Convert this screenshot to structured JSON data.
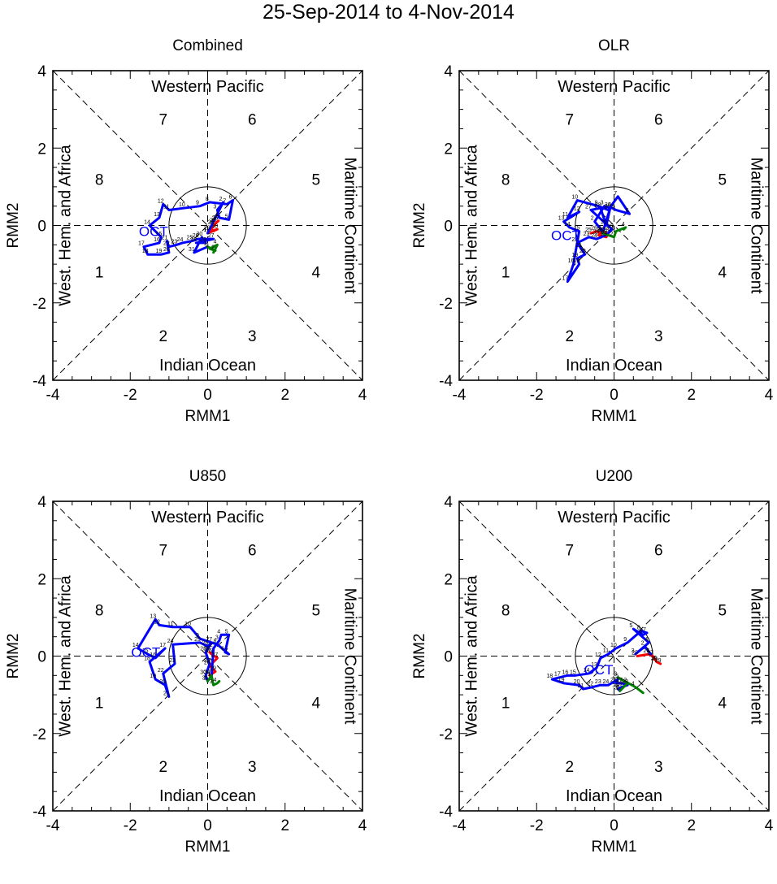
{
  "title": "25-Sep-2014 to 4-Nov-2014",
  "colors": {
    "september": "#ff0000",
    "october": "#0000ff",
    "november": "#008000",
    "axis": "#000000"
  },
  "chart_data": [
    {
      "type": "line",
      "title": "Combined",
      "xlabel": "RMM1",
      "ylabel": "RMM2",
      "xlim": [
        -4,
        4
      ],
      "ylim": [
        -4,
        4
      ],
      "ticks": [
        -4,
        -2,
        0,
        2,
        4
      ],
      "regions": {
        "top": "Western Pacific",
        "bottom": "Indian Ocean",
        "left": "West. Hem. and Africa",
        "right": "Maritime Continent"
      },
      "phases": [
        "1",
        "2",
        "3",
        "4",
        "5",
        "6",
        "7",
        "8"
      ],
      "month_label": "OCT",
      "month_label_at": [
        -1.4,
        -0.15
      ],
      "series": [
        {
          "name": "Sep",
          "color": "#ff0000",
          "points": [
            [
              0.15,
              0.0
            ],
            [
              0.25,
              0.1
            ],
            [
              0.28,
              0.12
            ],
            [
              0.2,
              0.05
            ],
            [
              0.05,
              -0.15
            ],
            [
              0.25,
              -0.1
            ],
            [
              0.0,
              -0.2
            ]
          ],
          "labels": [
            "25",
            "26",
            "27",
            "28",
            "29",
            "30",
            "1"
          ]
        },
        {
          "name": "Oct",
          "color": "#0000ff",
          "points": [
            [
              0.0,
              -0.2
            ],
            [
              0.4,
              0.6
            ],
            [
              0.25,
              0.4
            ],
            [
              0.3,
              0.2
            ],
            [
              0.55,
              0.15
            ],
            [
              0.65,
              0.65
            ],
            [
              0.5,
              0.55
            ],
            [
              0.05,
              0.6
            ],
            [
              -0.2,
              0.5
            ],
            [
              -0.6,
              0.45
            ],
            [
              -1.0,
              0.4
            ],
            [
              -1.15,
              0.55
            ],
            [
              -1.25,
              0.2
            ],
            [
              -1.5,
              0.0
            ],
            [
              -1.2,
              -0.3
            ],
            [
              -1.25,
              -0.45
            ],
            [
              -1.65,
              -0.55
            ],
            [
              -1.55,
              -0.75
            ],
            [
              -1.2,
              -0.75
            ],
            [
              -1.0,
              -0.7
            ],
            [
              -1.05,
              -0.4
            ],
            [
              -1.0,
              -0.55
            ],
            [
              -0.8,
              -0.5
            ],
            [
              -0.65,
              -0.45
            ],
            [
              -0.4,
              -0.4
            ],
            [
              -0.25,
              -0.35
            ],
            [
              0.15,
              -0.35
            ],
            [
              -0.3,
              -0.45
            ],
            [
              -0.05,
              -0.45
            ],
            [
              -0.15,
              -0.3
            ],
            [
              -0.35,
              -0.7
            ],
            [
              0.0,
              -0.55
            ]
          ],
          "labels": [
            "1",
            "2",
            "3",
            "4",
            "5",
            "6",
            "7",
            "8",
            "9",
            "10",
            "11",
            "12",
            "13",
            "14",
            "15",
            "16",
            "17",
            "18",
            "19",
            "20",
            "21",
            "22",
            "23",
            "24",
            "25",
            "26",
            "27",
            "28",
            "29",
            "30",
            "31",
            ""
          ]
        },
        {
          "name": "Nov",
          "color": "#008000",
          "points": [
            [
              0.0,
              -0.55
            ],
            [
              0.2,
              -0.65
            ],
            [
              0.05,
              -0.6
            ],
            [
              0.25,
              -0.5
            ],
            [
              0.15,
              -0.7
            ]
          ],
          "labels": [
            "1",
            "2",
            "3",
            "4",
            ""
          ]
        }
      ]
    },
    {
      "type": "line",
      "title": "OLR",
      "xlabel": "RMM1",
      "ylabel": "RMM2",
      "xlim": [
        -4,
        4
      ],
      "ylim": [
        -4,
        4
      ],
      "ticks": [
        -4,
        -2,
        0,
        2,
        4
      ],
      "regions": {
        "top": "Western Pacific",
        "bottom": "Indian Ocean",
        "left": "West. Hem. and Africa",
        "right": "Maritime Continent"
      },
      "phases": [
        "1",
        "2",
        "3",
        "4",
        "5",
        "6",
        "7",
        "8"
      ],
      "month_label": "OCT",
      "month_label_at": [
        -1.25,
        -0.25
      ],
      "series": [
        {
          "name": "Sep",
          "color": "#ff0000",
          "points": [
            [
              -0.6,
              -0.2
            ],
            [
              -0.45,
              -0.15
            ],
            [
              -0.3,
              -0.2
            ],
            [
              -0.15,
              -0.2
            ],
            [
              -0.2,
              -0.3
            ],
            [
              -0.4,
              -0.25
            ],
            [
              -0.3,
              -0.15
            ]
          ],
          "labels": [
            "25",
            "26",
            "27",
            "28",
            "29",
            "30",
            "1"
          ]
        },
        {
          "name": "Oct",
          "color": "#0000ff",
          "points": [
            [
              -0.3,
              -0.15
            ],
            [
              -0.5,
              0.1
            ],
            [
              -0.25,
              0.5
            ],
            [
              -0.05,
              0.45
            ],
            [
              0.05,
              0.4
            ],
            [
              0.4,
              0.3
            ],
            [
              0.1,
              0.75
            ],
            [
              -0.15,
              0.4
            ],
            [
              -0.4,
              0.5
            ],
            [
              -0.95,
              0.65
            ],
            [
              -1.2,
              0.2
            ],
            [
              -0.9,
              0.35
            ],
            [
              -1.3,
              0.1
            ],
            [
              -1.15,
              -0.05
            ],
            [
              -0.9,
              -0.15
            ],
            [
              -1.05,
              -1.0
            ],
            [
              -1.2,
              -1.45
            ],
            [
              -0.9,
              -1.0
            ],
            [
              -0.95,
              -0.85
            ],
            [
              -0.75,
              -0.75
            ],
            [
              -0.85,
              -0.6
            ],
            [
              -0.95,
              -0.45
            ],
            [
              -0.65,
              -0.3
            ],
            [
              -0.45,
              -0.35
            ],
            [
              -0.2,
              -0.25
            ],
            [
              -0.05,
              -0.1
            ],
            [
              -0.6,
              0.4
            ],
            [
              -0.35,
              0.45
            ],
            [
              -0.2,
              0.0
            ],
            [
              -0.1,
              0.45
            ],
            [
              -0.3,
              -0.2
            ]
          ],
          "labels": [
            "1",
            "2",
            "3",
            "4",
            "5",
            "6",
            "7",
            "8",
            "9",
            "10",
            "11",
            "12",
            "13",
            "14",
            "15",
            "16",
            "17",
            "18",
            "19",
            "20",
            "21",
            "22",
            "23",
            "24",
            "25",
            "26",
            "27",
            "28",
            "29",
            "30",
            "31"
          ]
        },
        {
          "name": "Nov",
          "color": "#008000",
          "points": [
            [
              -0.3,
              -0.2
            ],
            [
              0.0,
              -0.3
            ],
            [
              0.05,
              -0.15
            ],
            [
              0.3,
              -0.05
            ],
            [
              0.25,
              -0.1
            ]
          ],
          "labels": [
            "1",
            "2",
            "3",
            "4",
            ""
          ]
        }
      ]
    },
    {
      "type": "line",
      "title": "U850",
      "xlabel": "RMM1",
      "ylabel": "RMM2",
      "xlim": [
        -4,
        4
      ],
      "ylim": [
        -4,
        4
      ],
      "ticks": [
        -4,
        -2,
        0,
        2,
        4
      ],
      "regions": {
        "top": "Western Pacific",
        "bottom": "Indian Ocean",
        "left": "West. Hem. and Africa",
        "right": "Maritime Continent"
      },
      "phases": [
        "1",
        "2",
        "3",
        "4",
        "5",
        "6",
        "7",
        "8"
      ],
      "month_label": "OCT",
      "month_label_at": [
        -1.6,
        0.1
      ],
      "series": [
        {
          "name": "Sep",
          "color": "#ff0000",
          "points": [
            [
              0.05,
              0.1
            ],
            [
              0.1,
              0.05
            ],
            [
              0.25,
              -0.05
            ],
            [
              0.05,
              -0.25
            ],
            [
              0.2,
              -0.4
            ],
            [
              0.05,
              -0.5
            ],
            [
              0.1,
              -0.55
            ]
          ],
          "labels": [
            "25",
            "26",
            "27",
            "28",
            "29",
            "30",
            "1"
          ]
        },
        {
          "name": "Oct",
          "color": "#0000ff",
          "points": [
            [
              0.1,
              -0.55
            ],
            [
              0.15,
              0.2
            ],
            [
              0.3,
              0.4
            ],
            [
              0.35,
              0.55
            ],
            [
              0.55,
              0.55
            ],
            [
              0.45,
              0.1
            ],
            [
              0.55,
              0.05
            ],
            [
              0.25,
              0.3
            ],
            [
              -0.2,
              0.45
            ],
            [
              -0.45,
              0.75
            ],
            [
              -0.9,
              0.75
            ],
            [
              -1.25,
              0.8
            ],
            [
              -1.35,
              0.95
            ],
            [
              -1.8,
              0.2
            ],
            [
              -1.55,
              0.05
            ],
            [
              -1.35,
              -0.05
            ],
            [
              -1.1,
              0.2
            ],
            [
              -1.5,
              -0.15
            ],
            [
              -1.35,
              -0.6
            ],
            [
              -1.1,
              -0.75
            ],
            [
              -1.0,
              -1.05
            ],
            [
              -1.15,
              -0.45
            ],
            [
              -0.85,
              -0.2
            ],
            [
              -0.9,
              0.3
            ],
            [
              -0.2,
              0.35
            ],
            [
              0.0,
              0.25
            ],
            [
              0.1,
              0.35
            ],
            [
              -0.05,
              0.1
            ],
            [
              0.05,
              -0.2
            ],
            [
              -0.05,
              -0.5
            ],
            [
              0.0,
              -0.65
            ]
          ],
          "labels": [
            "1",
            "2",
            "3",
            "4",
            "5",
            "6",
            "7",
            "8",
            "9",
            "10",
            "11",
            "12",
            "13",
            "14",
            "15",
            "16",
            "17",
            "18",
            "19",
            "20",
            "21",
            "22",
            "23",
            "24",
            "25",
            "26",
            "27",
            "28",
            "29",
            "30",
            "31"
          ]
        },
        {
          "name": "Nov",
          "color": "#008000",
          "points": [
            [
              0.0,
              -0.65
            ],
            [
              0.1,
              -0.5
            ],
            [
              0.15,
              -0.75
            ],
            [
              0.25,
              -0.7
            ],
            [
              0.3,
              -0.65
            ]
          ],
          "labels": [
            "1",
            "2",
            "3",
            "4",
            ""
          ]
        }
      ]
    },
    {
      "type": "line",
      "title": "U200",
      "xlabel": "RMM1",
      "ylabel": "RMM2",
      "xlim": [
        -4,
        4
      ],
      "ylim": [
        -4,
        4
      ],
      "ticks": [
        -4,
        -2,
        0,
        2,
        4
      ],
      "regions": {
        "top": "Western Pacific",
        "bottom": "Indian Ocean",
        "left": "West. Hem. and Africa",
        "right": "Maritime Continent"
      },
      "phases": [
        "1",
        "2",
        "3",
        "4",
        "5",
        "6",
        "7",
        "8"
      ],
      "month_label": "OCT",
      "month_label_at": [
        -0.4,
        -0.35
      ],
      "series": [
        {
          "name": "Sep",
          "color": "#ff0000",
          "points": [
            [
              0.6,
              0.0
            ],
            [
              0.9,
              0.05
            ],
            [
              1.0,
              0.0
            ],
            [
              1.1,
              -0.15
            ],
            [
              1.2,
              -0.2
            ],
            [
              1.1,
              -0.15
            ],
            [
              0.95,
              0.05
            ]
          ],
          "labels": [
            "25",
            "26",
            "27",
            "28",
            "29",
            "30",
            "1"
          ]
        },
        {
          "name": "Oct",
          "color": "#0000ff",
          "points": [
            [
              0.95,
              0.05
            ],
            [
              0.8,
              0.25
            ],
            [
              0.55,
              0.05
            ],
            [
              0.9,
              0.35
            ],
            [
              0.5,
              0.7
            ],
            [
              0.75,
              0.55
            ],
            [
              0.85,
              0.6
            ],
            [
              0.7,
              0.65
            ],
            [
              0.35,
              0.35
            ],
            [
              0.05,
              0.2
            ],
            [
              -0.15,
              0.05
            ],
            [
              -0.35,
              -0.05
            ],
            [
              -0.45,
              -0.3
            ],
            [
              -0.65,
              -0.45
            ],
            [
              -1.0,
              -0.5
            ],
            [
              -1.2,
              -0.5
            ],
            [
              -1.4,
              -0.55
            ],
            [
              -1.6,
              -0.6
            ],
            [
              -1.3,
              -0.7
            ],
            [
              -0.9,
              -0.75
            ],
            [
              -0.8,
              -0.85
            ],
            [
              -0.55,
              -0.8
            ],
            [
              -0.35,
              -0.75
            ],
            [
              -0.15,
              -0.75
            ],
            [
              0.1,
              -0.6
            ],
            [
              0.05,
              -0.7
            ],
            [
              0.2,
              -0.7
            ],
            [
              0.35,
              -0.75
            ],
            [
              0.2,
              -0.8
            ],
            [
              0.1,
              -0.85
            ],
            [
              0.15,
              -0.9
            ]
          ],
          "labels": [
            "1",
            "2",
            "3",
            "4",
            "5",
            "6",
            "7",
            "8",
            "9",
            "10",
            "11",
            "12",
            "13",
            "14",
            "15",
            "16",
            "17",
            "18",
            "19",
            "20",
            "21",
            "22",
            "23",
            "24",
            "25",
            "26",
            "27",
            "28",
            "29",
            "30",
            "31"
          ]
        },
        {
          "name": "Nov",
          "color": "#008000",
          "points": [
            [
              0.15,
              -0.9
            ],
            [
              0.35,
              -0.7
            ],
            [
              0.1,
              -0.55
            ],
            [
              0.55,
              -0.8
            ],
            [
              0.75,
              -0.95
            ]
          ],
          "labels": [
            "1",
            "2",
            "3",
            "4",
            ""
          ]
        }
      ]
    }
  ]
}
